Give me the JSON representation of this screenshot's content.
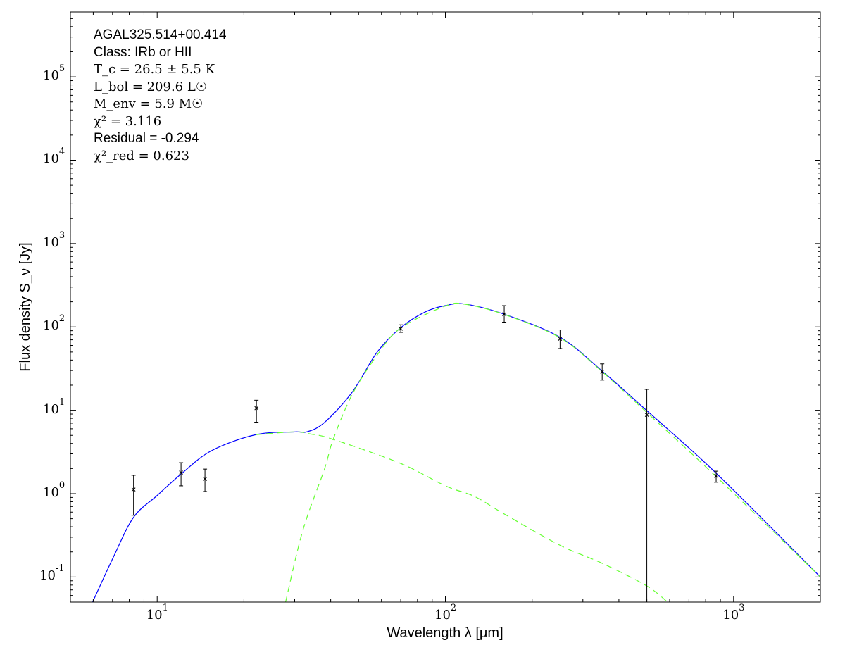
{
  "chart_data": {
    "type": "line",
    "xlabel": "Wavelength λ [μm]",
    "ylabel": "Flux density S_ν [Jy]",
    "xscale": "log",
    "yscale": "log",
    "xlim": [
      5,
      2000
    ],
    "ylim": [
      0.05,
      600000
    ],
    "x_tick_labels": [
      "10^1",
      "10^2",
      "10^3"
    ],
    "y_tick_labels": [
      "10^-1",
      "10^0",
      "10^1",
      "10^2",
      "10^3",
      "10^4",
      "10^5"
    ],
    "grid": false,
    "annotations": {
      "source": "AGAL325.514+00.414",
      "class": "Class: IRb or HII",
      "tc": "T_c = 26.5 ± 5.5 K",
      "lbol": "L_bol = 209.6 L☉",
      "menv": "M_env = 5.9 M☉",
      "chi2": "χ² = 3.116",
      "residual": "Residual = -0.294",
      "chi2red": "χ²_red = 0.623"
    },
    "measurements": [
      {
        "x": 8.28,
        "y": 1.12,
        "ylo": 0.55,
        "yhi": 1.66
      },
      {
        "x": 12.1,
        "y": 1.79,
        "ylo": 1.24,
        "yhi": 2.35
      },
      {
        "x": 14.65,
        "y": 1.5,
        "ylo": 1.06,
        "yhi": 1.97
      },
      {
        "x": 22.1,
        "y": 10.6,
        "ylo": 7.2,
        "yhi": 13.2
      },
      {
        "x": 70,
        "y": 95,
        "ylo": 86,
        "yhi": 106
      },
      {
        "x": 160,
        "y": 142,
        "ylo": 114,
        "yhi": 180
      },
      {
        "x": 250,
        "y": 72,
        "ylo": 55,
        "yhi": 92
      },
      {
        "x": 350,
        "y": 29,
        "ylo": 23,
        "yhi": 36
      },
      {
        "x": 500,
        "y": 8.8,
        "ylo": 0.01,
        "yhi": 17.8
      },
      {
        "x": 870,
        "y": 1.63,
        "ylo": 1.37,
        "yhi": 1.86
      }
    ],
    "series": [
      {
        "style": "solid",
        "color": "#0000ff",
        "points": [
          [
            5.97,
            0.05
          ],
          [
            7.07,
            0.177
          ],
          [
            8.28,
            0.52
          ],
          [
            10,
            0.95
          ],
          [
            12.2,
            1.76
          ],
          [
            15.5,
            3.3
          ],
          [
            22,
            5.1
          ],
          [
            30,
            5.5
          ],
          [
            33,
            5.5
          ],
          [
            38,
            7.1
          ],
          [
            47.5,
            16.5
          ],
          [
            58,
            50
          ],
          [
            70,
            98
          ],
          [
            85,
            151
          ],
          [
            100,
            180
          ],
          [
            117,
            188
          ],
          [
            160,
            142
          ],
          [
            250,
            75
          ],
          [
            350,
            29.5
          ],
          [
            500,
            9.9
          ],
          [
            870,
            1.76
          ],
          [
            2000,
            0.1
          ]
        ]
      },
      {
        "style": "dashed",
        "color": "#66ff33",
        "points": [
          [
            22,
            5.1
          ],
          [
            30,
            5.5
          ],
          [
            34,
            5.2
          ],
          [
            40.8,
            4.48
          ],
          [
            70,
            2.3
          ],
          [
            100,
            1.24
          ],
          [
            126.6,
            0.92
          ],
          [
            160,
            0.57
          ],
          [
            250,
            0.24
          ],
          [
            350,
            0.146
          ],
          [
            500,
            0.078
          ],
          [
            590,
            0.05
          ]
        ]
      },
      {
        "style": "dashed",
        "color": "#66ff33",
        "points": [
          [
            27.9,
            0.05
          ],
          [
            32,
            0.36
          ],
          [
            38,
            1.94
          ],
          [
            40.8,
            4.48
          ],
          [
            47.5,
            15.5
          ],
          [
            58,
            46
          ],
          [
            70,
            97
          ],
          [
            100,
            178
          ],
          [
            117,
            187
          ],
          [
            160,
            141
          ],
          [
            250,
            74
          ],
          [
            350,
            29
          ],
          [
            500,
            9.4
          ],
          [
            870,
            1.6
          ],
          [
            2000,
            0.1
          ]
        ]
      }
    ]
  }
}
